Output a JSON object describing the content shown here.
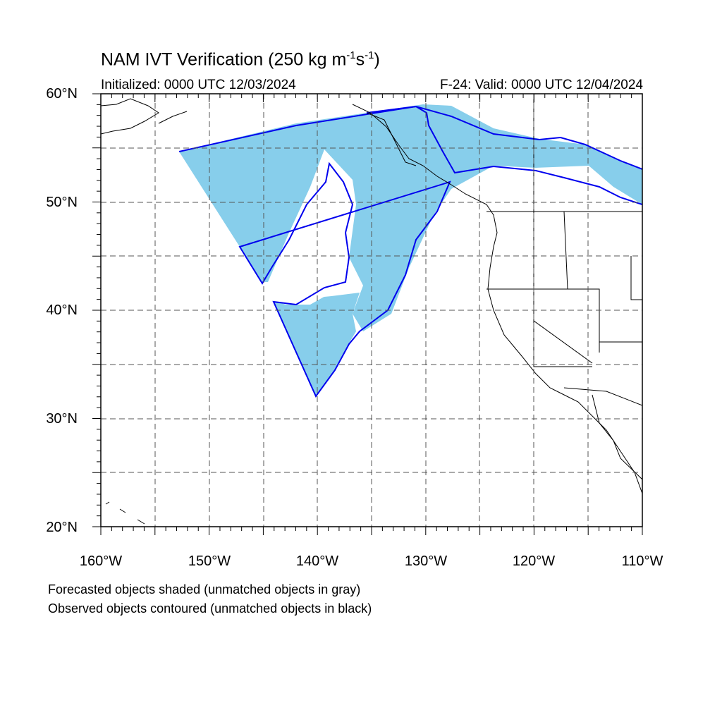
{
  "title": {
    "main": "NAM IVT Verification (250 kg m",
    "sup1": "-1",
    "mid": "s",
    "sup2": "-1",
    "end": ")"
  },
  "subtitle_left": "Initialized: 0000 UTC 12/03/2024",
  "subtitle_right": "F-24: Valid: 0000 UTC 12/04/2024",
  "axes": {
    "lat_labels": [
      "60°N",
      "50°N",
      "40°N",
      "30°N",
      "20°N"
    ],
    "lon_labels": [
      "160°W",
      "150°W",
      "140°W",
      "130°W",
      "120°W",
      "110°W"
    ],
    "lon_range": [
      -160,
      -110
    ],
    "lat_range": [
      20,
      60
    ]
  },
  "legend_notes": [
    "Forecasted objects shaded (unmatched objects in gray)",
    "Observed objects contoured (unmatched objects in black)"
  ],
  "colors": {
    "forecast_fill": "#87ceeb",
    "observed_contour": "#0000ee",
    "coastline": "#000000",
    "grid": "#555555"
  }
}
